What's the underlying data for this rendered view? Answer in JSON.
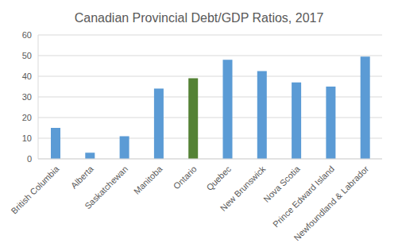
{
  "chart_data": {
    "type": "bar",
    "title": "Canadian Provincial Debt/GDP Ratios, 2017",
    "categories": [
      "British Columbia",
      "Alberta",
      "Saskatchewan",
      "Manitoba",
      "Ontario",
      "Quebec",
      "New Brunswick",
      "Nova Scotia",
      "Prince Edward Island",
      "Newfoundland & Labrador"
    ],
    "values": [
      15,
      3,
      11,
      34,
      39,
      48,
      42.5,
      37,
      35,
      49.5
    ],
    "colors": [
      "#5b9bd5",
      "#5b9bd5",
      "#5b9bd5",
      "#5b9bd5",
      "#548235",
      "#5b9bd5",
      "#5b9bd5",
      "#5b9bd5",
      "#5b9bd5",
      "#5b9bd5"
    ],
    "ylim": [
      0,
      60
    ],
    "yticks": [
      0,
      10,
      20,
      30,
      40,
      50,
      60
    ],
    "grid": true
  }
}
